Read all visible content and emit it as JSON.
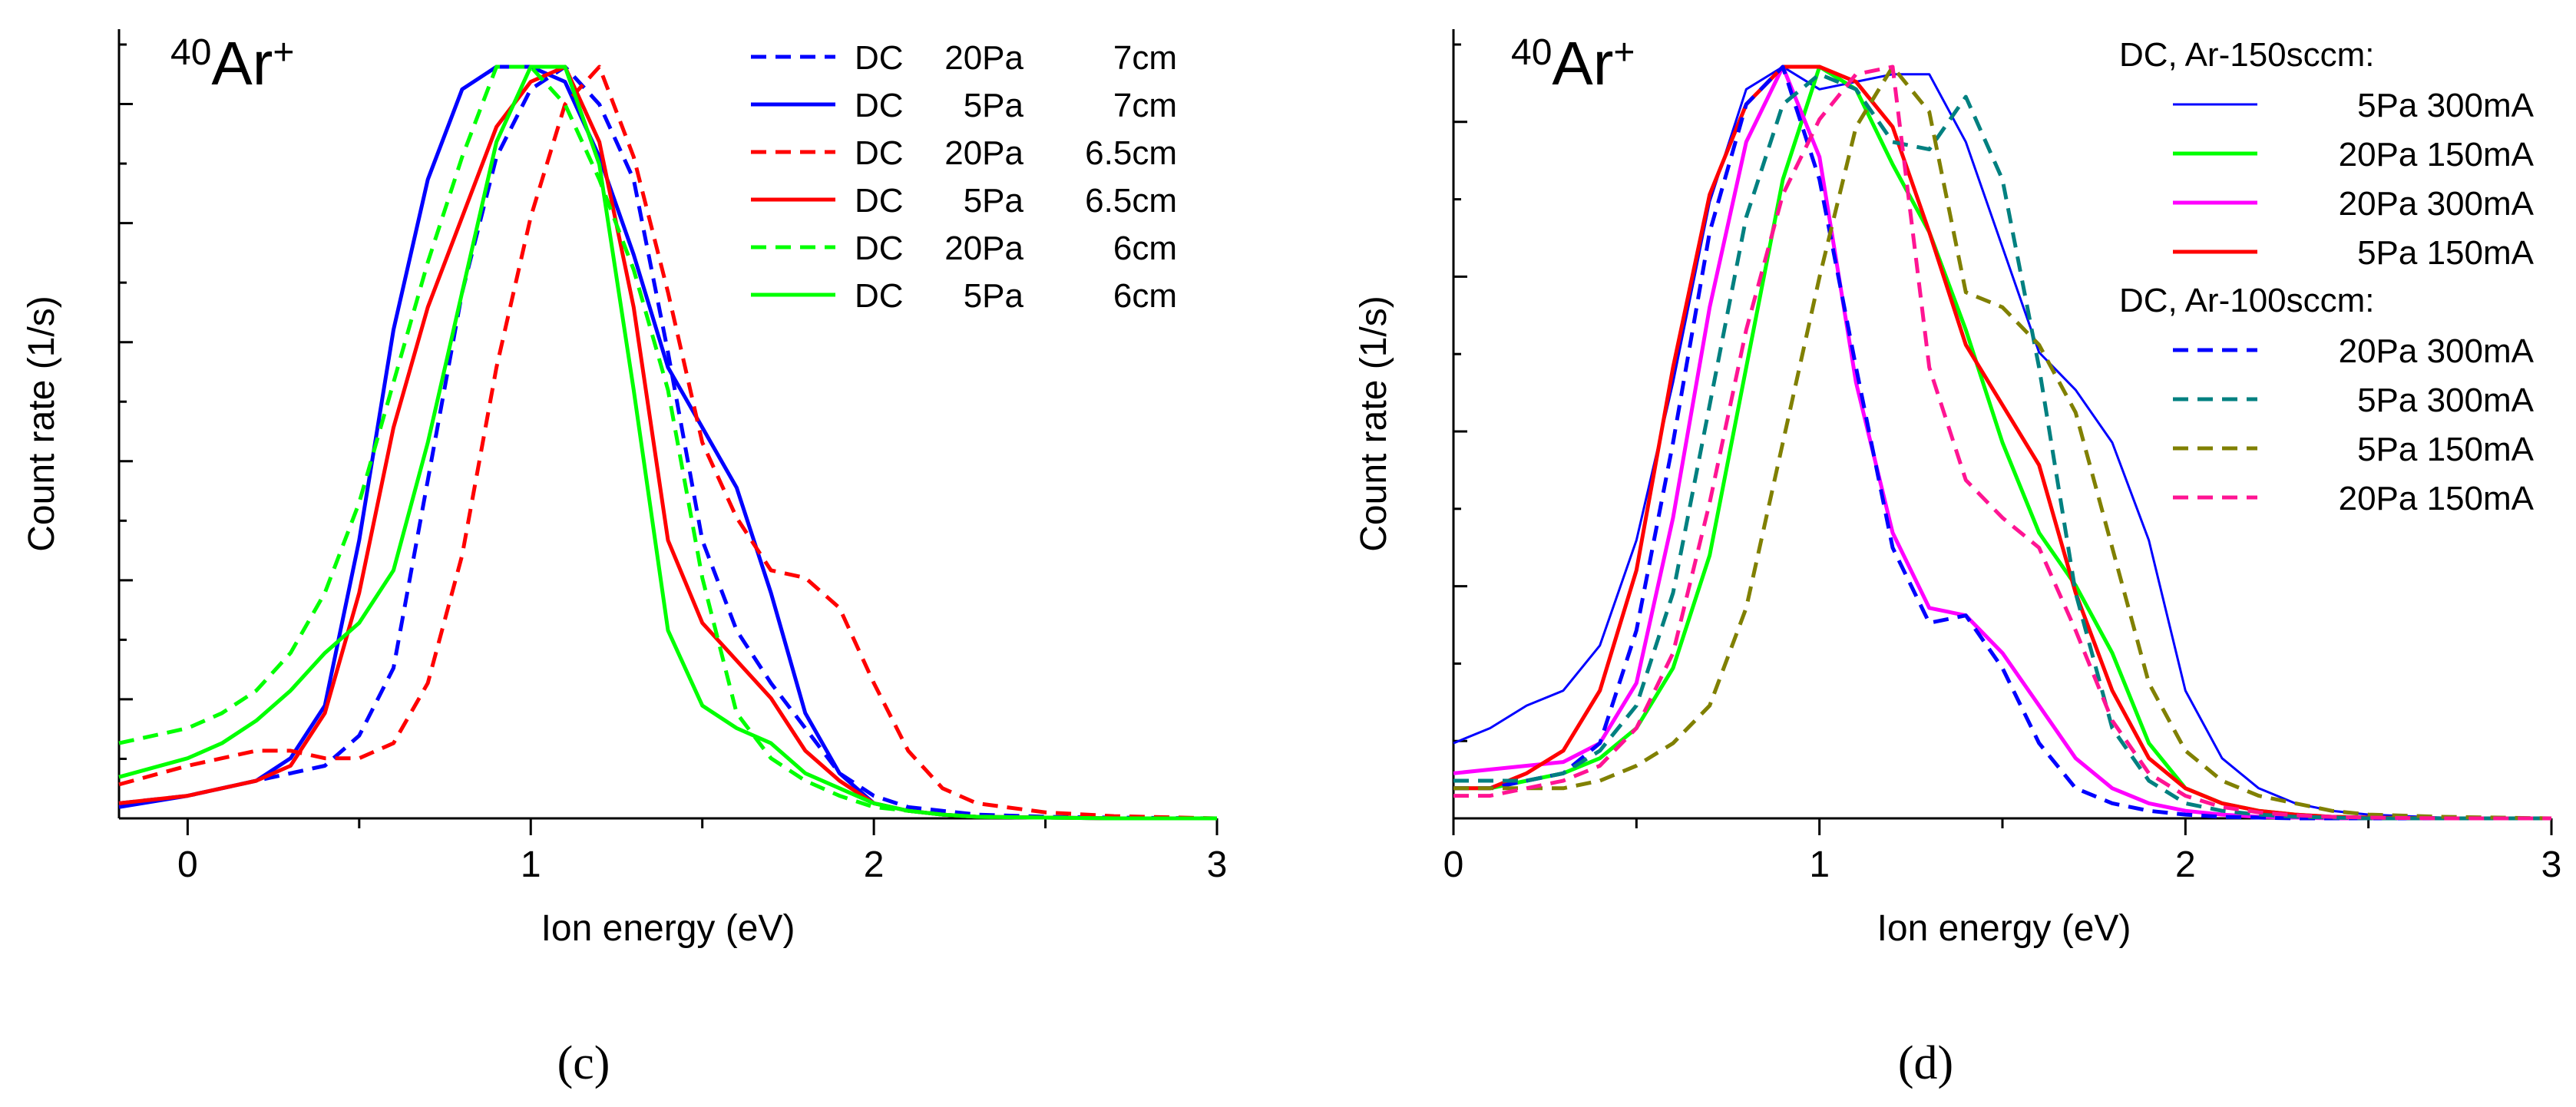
{
  "chart_data": [
    {
      "type": "line",
      "panel_caption": "(c)",
      "ion_label": {
        "super": "40",
        "base": "Ar",
        "charge": "+"
      },
      "xlabel": "Ion energy (eV)",
      "ylabel": "Count rate (1/s)",
      "xlim": [
        -0.2,
        3
      ],
      "ylim": [
        0,
        1.05
      ],
      "xticks": [
        0,
        1,
        2,
        3
      ],
      "xtick_labels": [
        "0",
        "1",
        "2",
        "3"
      ],
      "legend": "top-right",
      "series": [
        {
          "name": "DC  20Pa  7cm",
          "label_cols": [
            "DC",
            "20Pa",
            "7cm"
          ],
          "color": "#0000ff",
          "dash": true,
          "x": [
            -0.2,
            0,
            0.1,
            0.2,
            0.3,
            0.4,
            0.5,
            0.6,
            0.7,
            0.8,
            0.9,
            1.0,
            1.1,
            1.2,
            1.3,
            1.4,
            1.5,
            1.6,
            1.7,
            1.8,
            1.9,
            2.0,
            2.1,
            2.2,
            2.3,
            2.5,
            2.7,
            3.0
          ],
          "y": [
            0.02,
            0.03,
            0.04,
            0.05,
            0.06,
            0.07,
            0.11,
            0.2,
            0.45,
            0.7,
            0.88,
            0.97,
            1.0,
            0.95,
            0.85,
            0.62,
            0.37,
            0.25,
            0.18,
            0.12,
            0.06,
            0.03,
            0.015,
            0.01,
            0.005,
            0.002,
            0.001,
            0.0
          ]
        },
        {
          "name": "DC  5Pa  7cm",
          "label_cols": [
            "DC",
            "5Pa",
            "7cm"
          ],
          "color": "#0000ff",
          "dash": false,
          "x": [
            -0.2,
            0,
            0.1,
            0.2,
            0.3,
            0.4,
            0.5,
            0.6,
            0.7,
            0.8,
            0.9,
            1.0,
            1.1,
            1.2,
            1.3,
            1.4,
            1.5,
            1.6,
            1.7,
            1.8,
            1.9,
            2.0,
            2.1,
            2.2,
            2.3,
            2.5,
            2.7,
            3.0
          ],
          "y": [
            0.015,
            0.03,
            0.04,
            0.05,
            0.08,
            0.15,
            0.37,
            0.65,
            0.85,
            0.97,
            1.0,
            1.0,
            0.98,
            0.88,
            0.75,
            0.6,
            0.52,
            0.44,
            0.3,
            0.14,
            0.06,
            0.02,
            0.01,
            0.005,
            0.002,
            0.001,
            0.0,
            0.0
          ]
        },
        {
          "name": "DC  20Pa  6.5cm",
          "label_cols": [
            "DC",
            "20Pa",
            "6.5cm"
          ],
          "color": "#ff0000",
          "dash": true,
          "x": [
            -0.2,
            0,
            0.1,
            0.2,
            0.3,
            0.4,
            0.5,
            0.6,
            0.7,
            0.8,
            0.9,
            1.0,
            1.1,
            1.2,
            1.3,
            1.4,
            1.5,
            1.6,
            1.7,
            1.8,
            1.9,
            2.0,
            2.1,
            2.2,
            2.3,
            2.5,
            2.7,
            3.0
          ],
          "y": [
            0.045,
            0.07,
            0.08,
            0.09,
            0.09,
            0.08,
            0.08,
            0.1,
            0.18,
            0.35,
            0.6,
            0.8,
            0.95,
            1.0,
            0.88,
            0.7,
            0.5,
            0.4,
            0.33,
            0.32,
            0.28,
            0.18,
            0.09,
            0.04,
            0.02,
            0.008,
            0.003,
            0.0
          ]
        },
        {
          "name": "DC  5Pa  6.5cm",
          "label_cols": [
            "DC",
            "5Pa",
            "6.5cm"
          ],
          "color": "#ff0000",
          "dash": false,
          "x": [
            -0.2,
            0,
            0.1,
            0.2,
            0.3,
            0.4,
            0.5,
            0.6,
            0.7,
            0.8,
            0.9,
            1.0,
            1.1,
            1.2,
            1.3,
            1.4,
            1.5,
            1.6,
            1.7,
            1.8,
            1.9,
            2.0,
            2.1,
            2.2,
            2.3,
            2.5,
            2.7,
            3.0
          ],
          "y": [
            0.02,
            0.03,
            0.04,
            0.05,
            0.07,
            0.14,
            0.3,
            0.52,
            0.68,
            0.8,
            0.92,
            0.98,
            1.0,
            0.9,
            0.68,
            0.37,
            0.26,
            0.21,
            0.16,
            0.09,
            0.05,
            0.02,
            0.01,
            0.005,
            0.002,
            0.001,
            0.0,
            0.0
          ]
        },
        {
          "name": "DC  20Pa  6cm",
          "label_cols": [
            "DC",
            "20Pa",
            "6cm"
          ],
          "color": "#00ff00",
          "dash": true,
          "x": [
            -0.2,
            0,
            0.1,
            0.2,
            0.3,
            0.4,
            0.5,
            0.6,
            0.7,
            0.8,
            0.9,
            1.0,
            1.1,
            1.2,
            1.3,
            1.4,
            1.5,
            1.6,
            1.7,
            1.8,
            1.9,
            2.0,
            2.1,
            2.2,
            2.3,
            2.5,
            2.7,
            3.0
          ],
          "y": [
            0.1,
            0.12,
            0.14,
            0.17,
            0.22,
            0.3,
            0.42,
            0.58,
            0.74,
            0.88,
            1.0,
            1.0,
            0.95,
            0.85,
            0.73,
            0.57,
            0.32,
            0.14,
            0.08,
            0.05,
            0.03,
            0.015,
            0.01,
            0.005,
            0.002,
            0.001,
            0.0,
            0.0
          ]
        },
        {
          "name": "DC  5Pa  6cm",
          "label_cols": [
            "DC",
            "5Pa",
            "6cm"
          ],
          "color": "#00ff00",
          "dash": false,
          "x": [
            -0.2,
            0,
            0.1,
            0.2,
            0.3,
            0.4,
            0.5,
            0.6,
            0.7,
            0.8,
            0.9,
            1.0,
            1.1,
            1.2,
            1.3,
            1.4,
            1.5,
            1.6,
            1.7,
            1.8,
            1.9,
            2.0,
            2.1,
            2.2,
            2.3,
            2.5,
            2.7,
            3.0
          ],
          "y": [
            0.055,
            0.08,
            0.1,
            0.13,
            0.17,
            0.22,
            0.26,
            0.33,
            0.5,
            0.7,
            0.9,
            1.0,
            1.0,
            0.87,
            0.57,
            0.25,
            0.15,
            0.12,
            0.1,
            0.06,
            0.04,
            0.02,
            0.01,
            0.005,
            0.002,
            0.001,
            0.0,
            0.0
          ]
        }
      ]
    },
    {
      "type": "line",
      "panel_caption": "(d)",
      "ion_label": {
        "super": "40",
        "base": "Ar",
        "charge": "+"
      },
      "xlabel": "Ion energy (eV)",
      "ylabel": "Count rate (1/s)",
      "xlim": [
        0,
        3
      ],
      "ylim": [
        0,
        1.05
      ],
      "xticks": [
        0,
        1,
        2,
        3
      ],
      "xtick_labels": [
        "0",
        "1",
        "2",
        "3"
      ],
      "legend": "top-right",
      "legend_groups": [
        {
          "title": "DC, Ar-150sccm:",
          "series": [
            0,
            1,
            2,
            3
          ]
        },
        {
          "title": "DC, Ar-100sccm:",
          "series": [
            4,
            5,
            6,
            7
          ]
        }
      ],
      "series": [
        {
          "name": "5Pa 300mA",
          "color": "#0000ff",
          "dash": false,
          "thin": true,
          "x": [
            0,
            0.1,
            0.2,
            0.3,
            0.4,
            0.5,
            0.6,
            0.7,
            0.8,
            0.9,
            1.0,
            1.1,
            1.2,
            1.3,
            1.4,
            1.5,
            1.6,
            1.7,
            1.8,
            1.9,
            2.0,
            2.1,
            2.2,
            2.3,
            2.4,
            2.5,
            2.7,
            3.0
          ],
          "y": [
            0.1,
            0.12,
            0.15,
            0.17,
            0.23,
            0.37,
            0.58,
            0.82,
            0.97,
            1.0,
            0.97,
            0.98,
            0.99,
            0.99,
            0.9,
            0.76,
            0.62,
            0.57,
            0.5,
            0.37,
            0.17,
            0.08,
            0.04,
            0.02,
            0.01,
            0.005,
            0.001,
            0.0
          ]
        },
        {
          "name": "20Pa 150mA",
          "color": "#00ff00",
          "dash": false,
          "x": [
            0,
            0.1,
            0.2,
            0.3,
            0.4,
            0.5,
            0.6,
            0.7,
            0.8,
            0.9,
            1.0,
            1.1,
            1.2,
            1.3,
            1.4,
            1.5,
            1.6,
            1.7,
            1.8,
            1.9,
            2.0,
            2.1,
            2.2,
            2.3,
            2.4,
            2.5,
            2.7,
            3.0
          ],
          "y": [
            0.04,
            0.04,
            0.05,
            0.06,
            0.08,
            0.12,
            0.2,
            0.35,
            0.6,
            0.85,
            1.0,
            0.97,
            0.87,
            0.78,
            0.65,
            0.5,
            0.38,
            0.31,
            0.22,
            0.1,
            0.04,
            0.02,
            0.01,
            0.005,
            0.002,
            0.001,
            0.0,
            0.0
          ]
        },
        {
          "name": "20Pa 300mA",
          "color": "#ff00ff",
          "dash": false,
          "x": [
            0,
            0.1,
            0.2,
            0.3,
            0.4,
            0.5,
            0.6,
            0.7,
            0.8,
            0.9,
            1.0,
            1.1,
            1.2,
            1.3,
            1.4,
            1.5,
            1.6,
            1.7,
            1.8,
            1.9,
            2.0,
            2.1,
            2.2,
            2.3,
            2.4,
            2.5,
            2.7,
            3.0
          ],
          "y": [
            0.06,
            0.065,
            0.07,
            0.075,
            0.1,
            0.18,
            0.4,
            0.68,
            0.9,
            1.0,
            0.88,
            0.58,
            0.38,
            0.28,
            0.27,
            0.22,
            0.15,
            0.08,
            0.04,
            0.02,
            0.01,
            0.005,
            0.002,
            0.001,
            0.0,
            0.0,
            0.0,
            0.0
          ]
        },
        {
          "name": "5Pa 150mA",
          "color": "#ff0000",
          "dash": false,
          "x": [
            0,
            0.1,
            0.2,
            0.3,
            0.4,
            0.5,
            0.6,
            0.7,
            0.8,
            0.9,
            1.0,
            1.1,
            1.2,
            1.3,
            1.4,
            1.5,
            1.6,
            1.7,
            1.8,
            1.9,
            2.0,
            2.1,
            2.2,
            2.3,
            2.4,
            2.5,
            2.7,
            3.0
          ],
          "y": [
            0.04,
            0.04,
            0.06,
            0.09,
            0.17,
            0.33,
            0.6,
            0.83,
            0.95,
            1.0,
            1.0,
            0.98,
            0.92,
            0.78,
            0.63,
            0.55,
            0.47,
            0.3,
            0.17,
            0.08,
            0.04,
            0.02,
            0.01,
            0.005,
            0.002,
            0.001,
            0.0,
            0.0
          ]
        },
        {
          "name": "20Pa 300mA",
          "color": "#0000ff",
          "dash": true,
          "x": [
            0,
            0.1,
            0.2,
            0.3,
            0.4,
            0.5,
            0.6,
            0.7,
            0.8,
            0.9,
            1.0,
            1.1,
            1.2,
            1.3,
            1.4,
            1.5,
            1.6,
            1.7,
            1.8,
            1.9,
            2.0,
            2.1,
            2.2,
            2.3,
            2.4,
            2.5,
            2.7,
            3.0
          ],
          "y": [
            0.04,
            0.04,
            0.05,
            0.06,
            0.1,
            0.25,
            0.5,
            0.78,
            0.95,
            1.0,
            0.85,
            0.6,
            0.36,
            0.26,
            0.27,
            0.2,
            0.1,
            0.04,
            0.02,
            0.01,
            0.005,
            0.002,
            0.001,
            0.0,
            0.0,
            0.0,
            0.0,
            0.0
          ]
        },
        {
          "name": "5Pa 300mA",
          "color": "#008080",
          "dash": true,
          "x": [
            0,
            0.1,
            0.2,
            0.3,
            0.4,
            0.5,
            0.6,
            0.7,
            0.8,
            0.9,
            1.0,
            1.1,
            1.2,
            1.3,
            1.4,
            1.5,
            1.6,
            1.7,
            1.8,
            1.9,
            2.0,
            2.1,
            2.2,
            2.3,
            2.4,
            2.5,
            2.7,
            3.0
          ],
          "y": [
            0.05,
            0.05,
            0.05,
            0.06,
            0.09,
            0.15,
            0.3,
            0.55,
            0.8,
            0.95,
            0.99,
            0.97,
            0.9,
            0.89,
            0.96,
            0.85,
            0.6,
            0.3,
            0.12,
            0.05,
            0.02,
            0.01,
            0.005,
            0.002,
            0.001,
            0.0,
            0.0,
            0.0
          ]
        },
        {
          "name": "5Pa 150mA",
          "color": "#808000",
          "dash": true,
          "x": [
            0,
            0.1,
            0.2,
            0.3,
            0.4,
            0.5,
            0.6,
            0.7,
            0.8,
            0.9,
            1.0,
            1.1,
            1.2,
            1.3,
            1.4,
            1.5,
            1.6,
            1.7,
            1.8,
            1.9,
            2.0,
            2.1,
            2.2,
            2.3,
            2.4,
            2.5,
            2.7,
            3.0
          ],
          "y": [
            0.04,
            0.04,
            0.04,
            0.04,
            0.05,
            0.07,
            0.1,
            0.15,
            0.28,
            0.5,
            0.72,
            0.92,
            1.0,
            0.94,
            0.7,
            0.68,
            0.63,
            0.54,
            0.36,
            0.18,
            0.09,
            0.05,
            0.03,
            0.02,
            0.01,
            0.005,
            0.002,
            0.0
          ]
        },
        {
          "name": "20Pa 150mA",
          "color": "#ff1493",
          "dash": true,
          "x": [
            0,
            0.1,
            0.2,
            0.3,
            0.4,
            0.5,
            0.6,
            0.7,
            0.8,
            0.9,
            1.0,
            1.1,
            1.2,
            1.3,
            1.4,
            1.5,
            1.6,
            1.7,
            1.8,
            1.9,
            2.0,
            2.1,
            2.2,
            2.3,
            2.4,
            2.5,
            2.7,
            3.0
          ],
          "y": [
            0.03,
            0.03,
            0.04,
            0.05,
            0.07,
            0.12,
            0.22,
            0.42,
            0.65,
            0.83,
            0.93,
            0.99,
            1.0,
            0.6,
            0.45,
            0.4,
            0.36,
            0.25,
            0.13,
            0.06,
            0.03,
            0.015,
            0.008,
            0.004,
            0.002,
            0.001,
            0.0,
            0.0
          ]
        }
      ]
    }
  ]
}
